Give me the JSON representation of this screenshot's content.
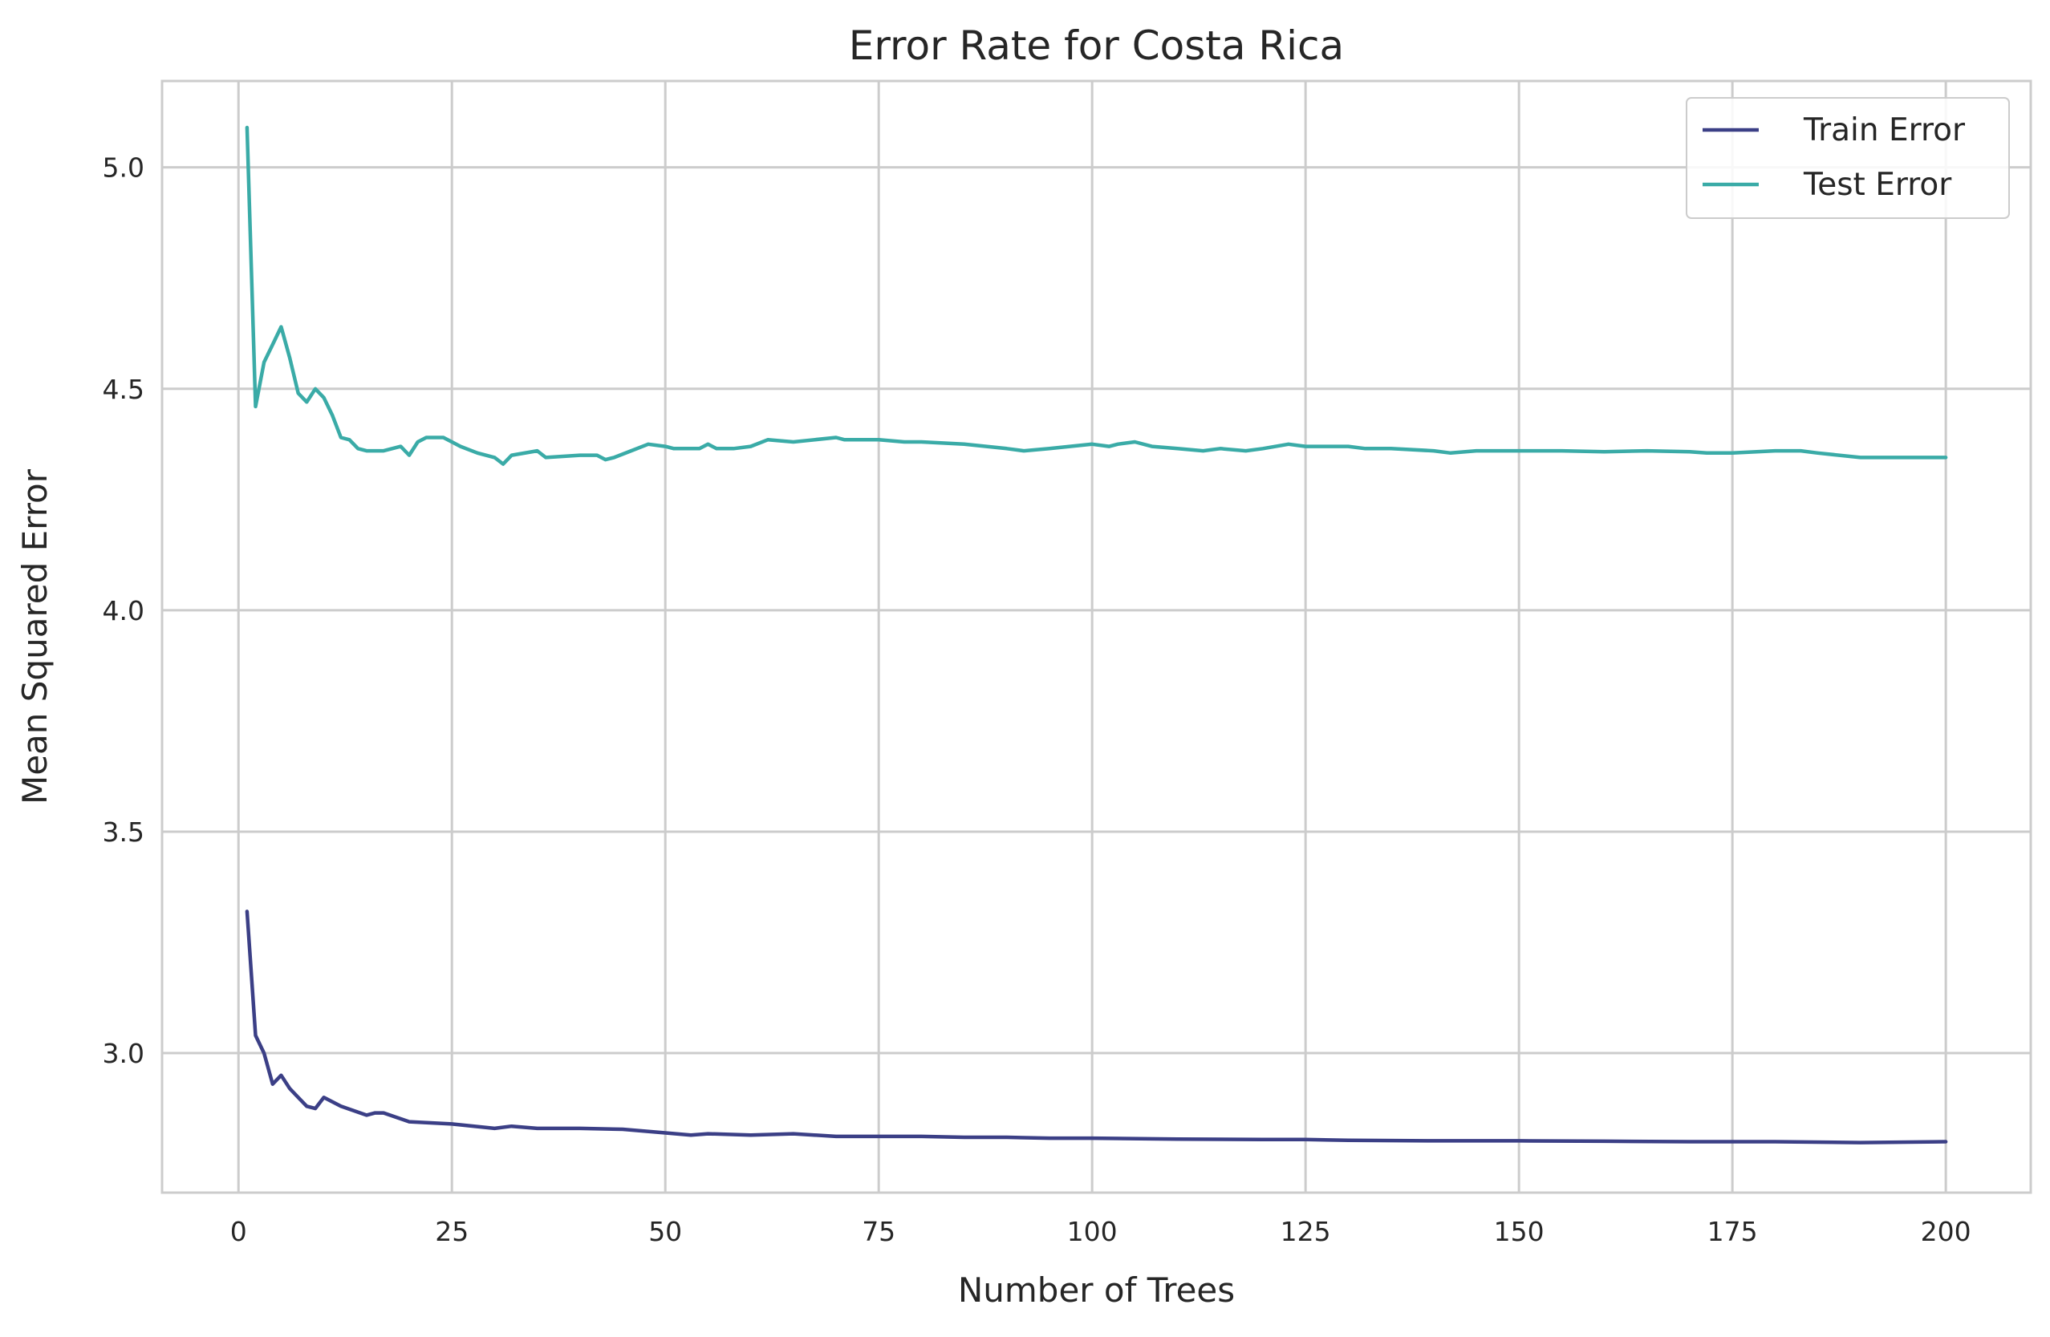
{
  "chart_data": {
    "type": "line",
    "title": "Error Rate for Costa Rica",
    "xlabel": "Number of Trees",
    "ylabel": "Mean Squared Error",
    "xlim": [
      -8.95,
      209.95
    ],
    "ylim": [
      2.685,
      5.195
    ],
    "x_ticks": [
      0,
      25,
      50,
      75,
      100,
      125,
      150,
      175,
      200
    ],
    "x_tick_labels": [
      "0",
      "25",
      "50",
      "75",
      "100",
      "125",
      "150",
      "175",
      "200"
    ],
    "y_ticks": [
      3.0,
      3.5,
      4.0,
      4.5,
      5.0
    ],
    "y_tick_labels": [
      "3.0",
      "3.5",
      "4.0",
      "4.5",
      "5.0"
    ],
    "grid": true,
    "legend_position": "top-right",
    "series": [
      {
        "name": "Train Error",
        "color": "#3b3f86",
        "points": [
          [
            1,
            3.32
          ],
          [
            2,
            3.04
          ],
          [
            3,
            3.0
          ],
          [
            4,
            2.93
          ],
          [
            5,
            2.95
          ],
          [
            6,
            2.92
          ],
          [
            7,
            2.9
          ],
          [
            8,
            2.88
          ],
          [
            9,
            2.875
          ],
          [
            10,
            2.9
          ],
          [
            12,
            2.88
          ],
          [
            15,
            2.86
          ],
          [
            16,
            2.865
          ],
          [
            17,
            2.865
          ],
          [
            20,
            2.845
          ],
          [
            25,
            2.84
          ],
          [
            30,
            2.83
          ],
          [
            32,
            2.835
          ],
          [
            35,
            2.83
          ],
          [
            40,
            2.83
          ],
          [
            45,
            2.828
          ],
          [
            50,
            2.82
          ],
          [
            53,
            2.815
          ],
          [
            55,
            2.818
          ],
          [
            60,
            2.815
          ],
          [
            65,
            2.818
          ],
          [
            70,
            2.812
          ],
          [
            75,
            2.812
          ],
          [
            80,
            2.812
          ],
          [
            85,
            2.81
          ],
          [
            90,
            2.81
          ],
          [
            95,
            2.808
          ],
          [
            100,
            2.808
          ],
          [
            110,
            2.806
          ],
          [
            120,
            2.805
          ],
          [
            125,
            2.805
          ],
          [
            130,
            2.803
          ],
          [
            140,
            2.802
          ],
          [
            150,
            2.802
          ],
          [
            160,
            2.801
          ],
          [
            170,
            2.8
          ],
          [
            180,
            2.8
          ],
          [
            190,
            2.798
          ],
          [
            200,
            2.8
          ]
        ]
      },
      {
        "name": "Test Error",
        "color": "#3aaba7",
        "points": [
          [
            1,
            5.09
          ],
          [
            2,
            4.46
          ],
          [
            3,
            4.56
          ],
          [
            4,
            4.6
          ],
          [
            5,
            4.64
          ],
          [
            6,
            4.57
          ],
          [
            7,
            4.49
          ],
          [
            8,
            4.47
          ],
          [
            9,
            4.5
          ],
          [
            10,
            4.48
          ],
          [
            11,
            4.44
          ],
          [
            12,
            4.39
          ],
          [
            13,
            4.385
          ],
          [
            14,
            4.365
          ],
          [
            15,
            4.36
          ],
          [
            17,
            4.36
          ],
          [
            19,
            4.37
          ],
          [
            20,
            4.35
          ],
          [
            21,
            4.38
          ],
          [
            22,
            4.39
          ],
          [
            24,
            4.39
          ],
          [
            25,
            4.38
          ],
          [
            26,
            4.37
          ],
          [
            28,
            4.355
          ],
          [
            30,
            4.345
          ],
          [
            31,
            4.33
          ],
          [
            32,
            4.35
          ],
          [
            35,
            4.36
          ],
          [
            36,
            4.345
          ],
          [
            40,
            4.35
          ],
          [
            42,
            4.35
          ],
          [
            43,
            4.34
          ],
          [
            44,
            4.345
          ],
          [
            46,
            4.36
          ],
          [
            48,
            4.375
          ],
          [
            50,
            4.37
          ],
          [
            51,
            4.365
          ],
          [
            54,
            4.365
          ],
          [
            55,
            4.375
          ],
          [
            56,
            4.365
          ],
          [
            58,
            4.365
          ],
          [
            60,
            4.37
          ],
          [
            62,
            4.385
          ],
          [
            65,
            4.38
          ],
          [
            70,
            4.39
          ],
          [
            71,
            4.385
          ],
          [
            75,
            4.385
          ],
          [
            78,
            4.38
          ],
          [
            80,
            4.38
          ],
          [
            85,
            4.375
          ],
          [
            90,
            4.365
          ],
          [
            92,
            4.36
          ],
          [
            95,
            4.365
          ],
          [
            100,
            4.375
          ],
          [
            102,
            4.37
          ],
          [
            103,
            4.375
          ],
          [
            105,
            4.38
          ],
          [
            107,
            4.37
          ],
          [
            110,
            4.365
          ],
          [
            113,
            4.36
          ],
          [
            115,
            4.365
          ],
          [
            118,
            4.36
          ],
          [
            120,
            4.365
          ],
          [
            123,
            4.375
          ],
          [
            125,
            4.37
          ],
          [
            128,
            4.37
          ],
          [
            130,
            4.37
          ],
          [
            132,
            4.365
          ],
          [
            135,
            4.365
          ],
          [
            140,
            4.36
          ],
          [
            142,
            4.355
          ],
          [
            145,
            4.36
          ],
          [
            148,
            4.36
          ],
          [
            150,
            4.36
          ],
          [
            155,
            4.36
          ],
          [
            160,
            4.358
          ],
          [
            165,
            4.36
          ],
          [
            170,
            4.358
          ],
          [
            172,
            4.355
          ],
          [
            175,
            4.355
          ],
          [
            180,
            4.36
          ],
          [
            183,
            4.36
          ],
          [
            185,
            4.355
          ],
          [
            190,
            4.345
          ],
          [
            195,
            4.345
          ],
          [
            200,
            4.345
          ]
        ]
      }
    ]
  }
}
